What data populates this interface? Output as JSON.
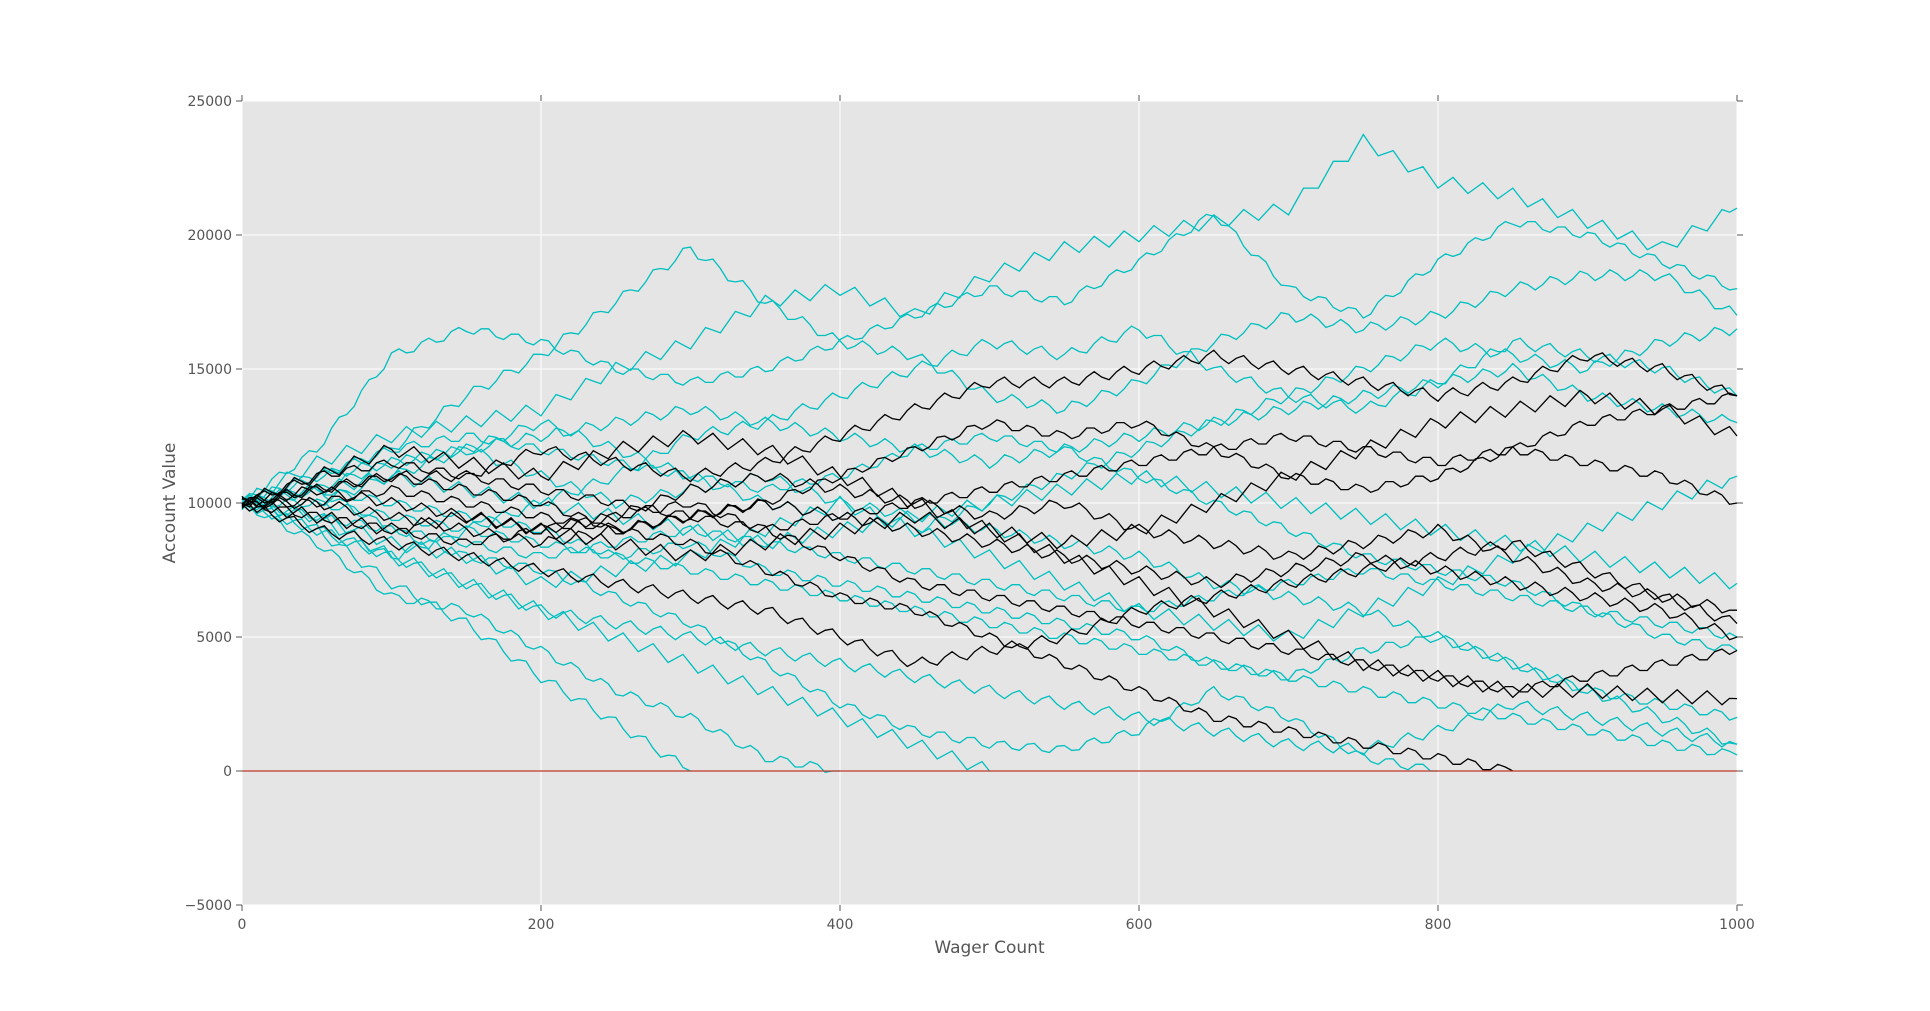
{
  "chart_data": {
    "type": "line",
    "title": "",
    "xlabel": "Wager Count",
    "ylabel": "Account Value",
    "xlim": [
      0,
      1000
    ],
    "ylim": [
      -5000,
      25000
    ],
    "xticks": [
      "0",
      "200",
      "400",
      "600",
      "800",
      "1000"
    ],
    "yticks": [
      "−5000",
      "0",
      "5000",
      "10000",
      "15000",
      "20000",
      "25000"
    ],
    "grid": true,
    "background": "#e5e5e5",
    "colors": {
      "winning": "#00bfbf",
      "losing": "#000000",
      "zero_line": "#c0392b"
    },
    "x": [
      0,
      50,
      100,
      150,
      200,
      250,
      300,
      350,
      400,
      450,
      500,
      550,
      600,
      650,
      700,
      750,
      800,
      850,
      900,
      950,
      1000
    ],
    "reference_line": {
      "y": 0
    },
    "series_cyan": [
      [
        10000,
        11500,
        12500,
        13000,
        13500,
        15000,
        16000,
        17500,
        18000,
        17000,
        18500,
        19500,
        20000,
        20500,
        21000,
        23500,
        22000,
        21500,
        20500,
        19500,
        21000
      ],
      [
        10000,
        12000,
        15500,
        16500,
        16000,
        15000,
        14500,
        15000,
        16000,
        17000,
        18000,
        17500,
        19000,
        20800,
        18000,
        17000,
        19000,
        20500,
        20000,
        19000,
        18000
      ],
      [
        10000,
        11000,
        12000,
        14000,
        15500,
        17500,
        19500,
        17500,
        16000,
        15500,
        14000,
        13500,
        14500,
        16000,
        17000,
        16500,
        17000,
        18000,
        18500,
        18500,
        17000
      ],
      [
        10000,
        9000,
        7000,
        5500,
        3500,
        1800,
        0
      ],
      [
        10000,
        8500,
        6500,
        6000,
        4500,
        3000,
        2000,
        500,
        0
      ],
      [
        10000,
        9500,
        8000,
        7000,
        6000,
        5000,
        4000,
        3000,
        2000,
        1000,
        0
      ],
      [
        10000,
        10500,
        9000,
        8000,
        7500,
        6500,
        5500,
        4000,
        2500,
        1500,
        1000,
        800,
        1500,
        3000,
        2000,
        500,
        0
      ],
      [
        10000,
        11000,
        11500,
        12000,
        11000,
        10000,
        10500,
        11000,
        10000,
        9500,
        9000,
        8500,
        8000,
        7000,
        6500,
        6000,
        5000,
        4000,
        3000,
        2000,
        1000
      ],
      [
        10000,
        9000,
        8000,
        9000,
        10000,
        11000,
        12500,
        13000,
        14000,
        15000,
        16000,
        15500,
        16500,
        15000,
        14000,
        13500,
        14500,
        16000,
        15500,
        15000,
        14000
      ],
      [
        10000,
        10500,
        10000,
        9500,
        9000,
        8000,
        8500,
        7500,
        7000,
        6500,
        6000,
        5500,
        5000,
        4000,
        3500,
        4500,
        5000,
        4000,
        3000,
        2500,
        2000
      ],
      [
        10000,
        9500,
        8500,
        8000,
        7000,
        7500,
        8000,
        9000,
        10000,
        9000,
        8000,
        7000,
        6000,
        5500,
        5000,
        6000,
        7000,
        8000,
        9000,
        10000,
        11000
      ],
      [
        10000,
        11000,
        12000,
        12500,
        12000,
        11500,
        11000,
        10500,
        11000,
        12000,
        12500,
        12000,
        11000,
        10000,
        9000,
        8000,
        7500,
        7000,
        6000,
        5000,
        4500
      ],
      [
        10000,
        10000,
        11000,
        12000,
        13000,
        12000,
        11000,
        10000,
        9500,
        9000,
        10000,
        11000,
        12000,
        13000,
        14000,
        15000,
        16000,
        15500,
        15000,
        16000,
        16500
      ],
      [
        10000,
        9000,
        8000,
        7000,
        6000,
        5500,
        5000,
        4500,
        4000,
        3500,
        3000,
        2500,
        2000,
        1500,
        1000,
        800,
        1500,
        2500,
        2000,
        1500,
        1000
      ],
      [
        10000,
        10000,
        9500,
        9000,
        8500,
        8000,
        7500,
        7000,
        6500,
        6000,
        5500,
        5000,
        4500,
        4000,
        3500,
        3000,
        2500,
        2000,
        1500,
        1000,
        600
      ],
      [
        10000,
        10500,
        11000,
        10500,
        10000,
        9500,
        9000,
        8500,
        9000,
        9500,
        10000,
        10500,
        11000,
        10500,
        10000,
        9500,
        9000,
        8500,
        8000,
        7500,
        7000
      ],
      [
        10000,
        9500,
        9000,
        8500,
        8000,
        8500,
        9000,
        8500,
        8000,
        7500,
        7000,
        6500,
        6000,
        6500,
        7000,
        7500,
        7000,
        6500,
        6000,
        5500,
        5000
      ],
      [
        10000,
        10500,
        11500,
        12000,
        12500,
        13000,
        13500,
        13000,
        12500,
        12000,
        11500,
        12000,
        12500,
        13000,
        13500,
        14000,
        14500,
        15000,
        14000,
        13500,
        13000
      ]
    ],
    "series_black": [
      [
        10000,
        10500,
        11000,
        11000,
        12000,
        11500,
        11000,
        11500,
        12500,
        13500,
        14500,
        14500,
        15000,
        15500,
        15000,
        14500,
        14000,
        14500,
        15500,
        15000,
        14000
      ],
      [
        10000,
        10000,
        10500,
        10000,
        9500,
        9000,
        8500,
        7500,
        6500,
        6000,
        5000,
        4000,
        3000,
        2000,
        1500,
        1000,
        500,
        0
      ],
      [
        10000,
        11000,
        12000,
        11500,
        11000,
        12000,
        12500,
        12000,
        11000,
        10000,
        9000,
        8500,
        9000,
        10000,
        11000,
        12000,
        13000,
        13500,
        14000,
        13500,
        12500
      ],
      [
        10000,
        9500,
        9000,
        8500,
        9000,
        9500,
        10000,
        9000,
        8000,
        7000,
        6500,
        6000,
        5500,
        5000,
        4500,
        4000,
        3500,
        3000,
        3500,
        4000,
        4500
      ],
      [
        10000,
        10500,
        10000,
        9500,
        9000,
        9500,
        10500,
        11000,
        10500,
        10000,
        9500,
        10000,
        9000,
        8500,
        8000,
        8500,
        9000,
        8000,
        7000,
        6500,
        6000
      ],
      [
        10000,
        9000,
        8500,
        8000,
        7500,
        7000,
        6500,
        6000,
        5000,
        4000,
        4500,
        5000,
        6000,
        6500,
        7000,
        7500,
        8000,
        8500,
        7500,
        6500,
        5500
      ],
      [
        10000,
        10500,
        11000,
        10500,
        10000,
        9000,
        9500,
        10000,
        11000,
        12000,
        13000,
        12500,
        13000,
        12000,
        11000,
        10500,
        11000,
        12000,
        11500,
        11000,
        10000
      ],
      [
        10000,
        9500,
        9000,
        9500,
        9000,
        8500,
        8000,
        8500,
        9000,
        9500,
        9000,
        8000,
        7000,
        6000,
        5000,
        4000,
        3500,
        3000,
        3000,
        2800,
        2700
      ],
      [
        10000,
        11000,
        11500,
        11000,
        10500,
        10000,
        9500,
        9000,
        9500,
        10000,
        10500,
        11000,
        11500,
        12000,
        12500,
        12000,
        11500,
        12000,
        13000,
        13500,
        14000
      ],
      [
        10000,
        10000,
        9500,
        9000,
        8500,
        9000,
        9500,
        10000,
        9500,
        9000,
        8500,
        8000,
        7500,
        7000,
        7500,
        8000,
        7500,
        7000,
        6500,
        6000,
        5000
      ]
    ]
  }
}
